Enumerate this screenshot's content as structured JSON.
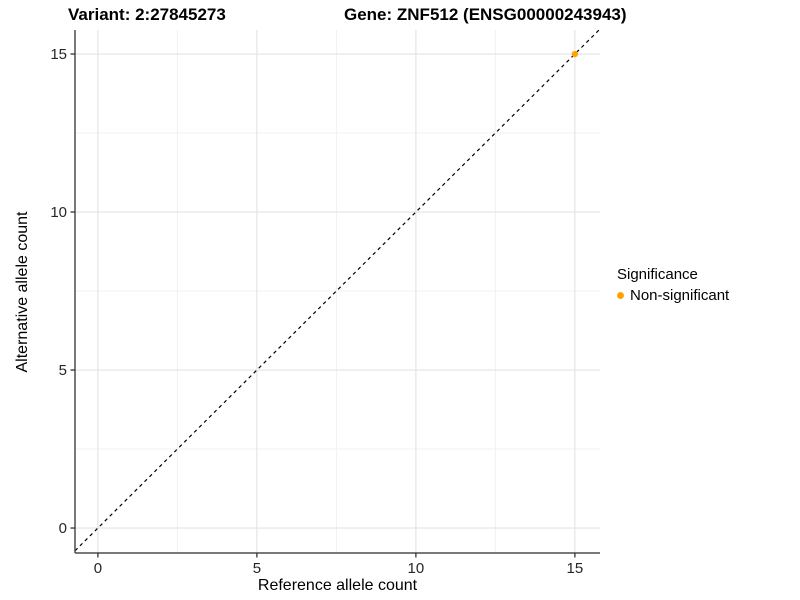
{
  "chart_data": {
    "type": "scatter",
    "title_left": "Variant: 2:27845273",
    "title_right": "Gene: ZNF512 (ENSG00000243943)",
    "xlabel": "Reference allele count",
    "ylabel": "Alternative allele count",
    "xlim": [
      -0.72,
      15.79
    ],
    "ylim": [
      -0.79,
      15.76
    ],
    "x_ticks": [
      0,
      5,
      10,
      15
    ],
    "y_ticks": [
      0,
      5,
      10,
      15
    ],
    "x_minor_ticks": [
      2.5,
      7.5,
      12.5
    ],
    "y_minor_ticks": [
      2.5,
      7.5,
      12.5
    ],
    "grid": true,
    "abline": {
      "slope": 1,
      "intercept": 0,
      "style": "dashed",
      "color": "#000000"
    },
    "points": [
      {
        "x": 15,
        "y": 15,
        "series": "Non-significant"
      }
    ],
    "legend": {
      "position": "right",
      "title": "Significance",
      "items": [
        {
          "label": "Non-significant",
          "color": "#FFA500"
        }
      ]
    },
    "colors": {
      "grid_major": "#e3e3e3",
      "grid_minor": "#f1f1f1",
      "axis_line": "#4d4d4d",
      "tick_mark": "#333333",
      "tick_label": "#262626"
    }
  }
}
